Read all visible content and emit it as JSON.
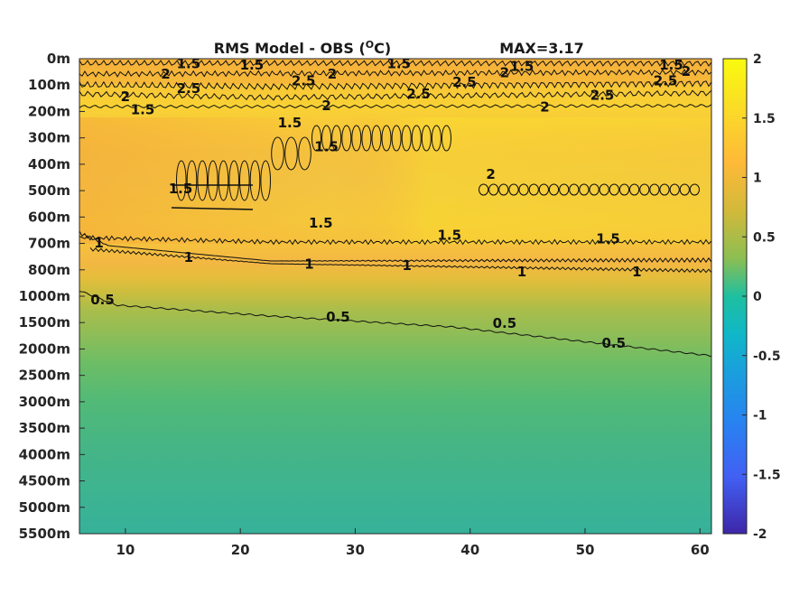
{
  "chart_data": {
    "type": "heatmap",
    "title": "RMS Model - OBS (",
    "title_unit": "O",
    "title_suffix": "C)",
    "max_label": "MAX=3.17",
    "xlim": [
      6,
      61
    ],
    "x_ticks": [
      10,
      20,
      30,
      40,
      50,
      60
    ],
    "y_ticks": [
      "0m",
      "100m",
      "200m",
      "300m",
      "400m",
      "500m",
      "600m",
      "700m",
      "800m",
      "1000m",
      "1500m",
      "2000m",
      "2500m",
      "3000m",
      "3500m",
      "4000m",
      "4500m",
      "5000m",
      "5500m"
    ],
    "colorbar": {
      "min": -2,
      "max": 2,
      "ticks": [
        "2",
        "1.5",
        "1",
        "0.5",
        "0",
        "-0.5",
        "-1",
        "-1.5",
        "-2"
      ]
    },
    "grid": false,
    "depth_profile": [
      {
        "depth": "0m",
        "value": 1.45
      },
      {
        "depth": "100m",
        "value": 1.6
      },
      {
        "depth": "200m",
        "value": 1.55
      },
      {
        "depth": "300m",
        "value": 1.8
      },
      {
        "depth": "400m",
        "value": 1.85
      },
      {
        "depth": "500m",
        "value": 1.85
      },
      {
        "depth": "600m",
        "value": 1.7
      },
      {
        "depth": "700m",
        "value": 1.35
      },
      {
        "depth": "800m",
        "value": 1.05
      },
      {
        "depth": "1000m",
        "value": 0.75
      },
      {
        "depth": "1500m",
        "value": 0.55
      },
      {
        "depth": "2000m",
        "value": 0.45
      },
      {
        "depth": "2500m",
        "value": 0.4
      },
      {
        "depth": "3000m",
        "value": 0.38
      },
      {
        "depth": "5500m",
        "value": 0.3
      }
    ],
    "contour_labels": [
      {
        "text": "1.5",
        "x": 15.5,
        "depth_level": 0.15
      },
      {
        "text": "1.5",
        "x": 21,
        "depth_level": 0.2
      },
      {
        "text": "1.5",
        "x": 33.8,
        "depth_level": 0.15
      },
      {
        "text": "1.5",
        "x": 44.5,
        "depth_level": 0.25
      },
      {
        "text": "1.5",
        "x": 57.5,
        "depth_level": 0.2
      },
      {
        "text": "2",
        "x": 13.5,
        "depth_level": 0.55
      },
      {
        "text": "2",
        "x": 28,
        "depth_level": 0.55
      },
      {
        "text": "2",
        "x": 43,
        "depth_level": 0.5
      },
      {
        "text": "2",
        "x": 58.8,
        "depth_level": 0.45
      },
      {
        "text": "2.5",
        "x": 15.5,
        "depth_level": 1.1
      },
      {
        "text": "2.5",
        "x": 25.5,
        "depth_level": 0.8
      },
      {
        "text": "2.5",
        "x": 35.5,
        "depth_level": 1.3
      },
      {
        "text": "2.5",
        "x": 39.5,
        "depth_level": 0.85
      },
      {
        "text": "2.5",
        "x": 57,
        "depth_level": 0.8
      },
      {
        "text": "2.5",
        "x": 51.5,
        "depth_level": 1.35
      },
      {
        "text": "2",
        "x": 10,
        "depth_level": 1.4
      },
      {
        "text": "2",
        "x": 27.5,
        "depth_level": 1.75
      },
      {
        "text": "2",
        "x": 46.5,
        "depth_level": 1.8
      },
      {
        "text": "1.5",
        "x": 11.5,
        "depth_level": 1.9
      },
      {
        "text": "1.5",
        "x": 24.3,
        "depth_level": 2.4
      },
      {
        "text": "1.5",
        "x": 27.5,
        "depth_level": 3.3
      },
      {
        "text": "2",
        "x": 41.8,
        "depth_level": 4.35
      },
      {
        "text": "1.5",
        "x": 14.8,
        "depth_level": 4.9
      },
      {
        "text": "1.5",
        "x": 27,
        "depth_level": 6.2
      },
      {
        "text": "1.5",
        "x": 38.2,
        "depth_level": 6.65
      },
      {
        "text": "1.5",
        "x": 52,
        "depth_level": 6.8
      },
      {
        "text": "1",
        "x": 7.7,
        "depth_level": 6.95
      },
      {
        "text": "1",
        "x": 15.5,
        "depth_level": 7.5
      },
      {
        "text": "1",
        "x": 26,
        "depth_level": 7.75
      },
      {
        "text": "1",
        "x": 34.5,
        "depth_level": 7.8
      },
      {
        "text": "1",
        "x": 44.5,
        "depth_level": 8.05
      },
      {
        "text": "1",
        "x": 54.5,
        "depth_level": 8.05
      },
      {
        "text": "0.5",
        "x": 8,
        "depth_level": 9.1
      },
      {
        "text": "0.5",
        "x": 28.5,
        "depth_level": 9.75
      },
      {
        "text": "0.5",
        "x": 43,
        "depth_level": 10.0
      },
      {
        "text": "0.5",
        "x": 52.5,
        "depth_level": 10.75
      }
    ]
  }
}
